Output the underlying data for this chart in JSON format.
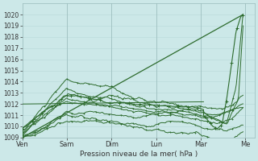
{
  "title": "",
  "xlabel": "Pression niveau de la mer( hPa )",
  "ylabel": "",
  "bg_color": "#cce8e8",
  "grid_color": "#b8d8d8",
  "line_color": "#2d6b2d",
  "ylim": [
    1009,
    1021
  ],
  "yticks": [
    1009,
    1010,
    1011,
    1012,
    1013,
    1014,
    1015,
    1016,
    1017,
    1018,
    1019,
    1020
  ],
  "day_labels": [
    "Ven",
    "Sam",
    "Dim",
    "Lun",
    "Mar",
    "Me"
  ],
  "day_positions": [
    0.0,
    0.192,
    0.384,
    0.576,
    0.768,
    0.96
  ],
  "xlim": [
    0,
    1.0
  ]
}
